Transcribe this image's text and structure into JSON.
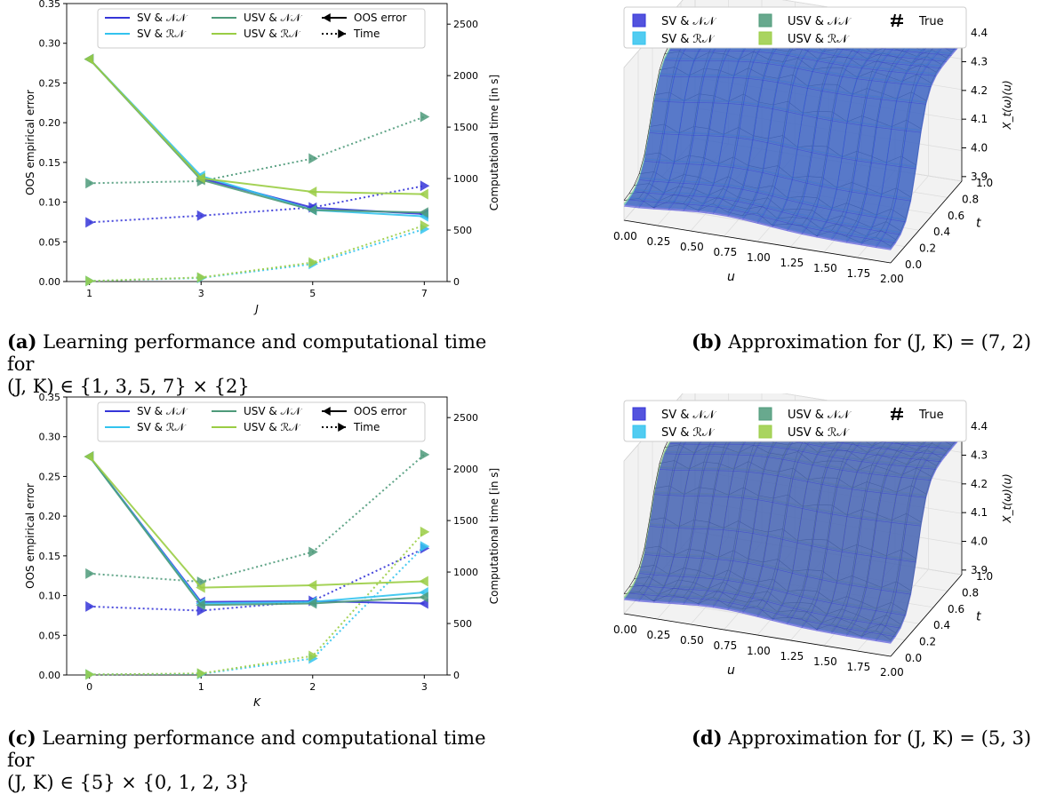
{
  "colors": {
    "sv_nn": "#3535d8",
    "sv_rn": "#33c3ee",
    "usv_nn": "#4e9a7a",
    "usv_rn": "#9acd44",
    "true": "#222222"
  },
  "legend_line": {
    "sv_nn": "SV & 𝒩𝒩",
    "sv_rn": "SV & ℛ𝒩",
    "usv_nn": "USV & 𝒩𝒩",
    "usv_rn": "USV & ℛ𝒩",
    "oos": "OOS error",
    "time": "Time"
  },
  "legend_surface": {
    "sv_nn": "SV & 𝒩𝒩",
    "sv_rn": "SV & ℛ𝒩",
    "usv_nn": "USV & 𝒩𝒩",
    "usv_rn": "USV & ℛ𝒩",
    "true": "True"
  },
  "captions": {
    "a": {
      "tag": "(a)",
      "line1": "Learning performance and computational time for",
      "line2": "(J, K) ∈ {1, 3, 5, 7} × {2}"
    },
    "b": {
      "tag": "(b)",
      "line1": "Approximation for (J, K) = (7, 2)"
    },
    "c": {
      "tag": "(c)",
      "line1": "Learning performance and computational time for",
      "line2": "(J, K) ∈ {5} × {0, 1, 2, 3}"
    },
    "d": {
      "tag": "(d)",
      "line1": "Approximation for (J, K) = (5, 3)"
    }
  },
  "chart_data": [
    {
      "id": "a",
      "type": "line",
      "xlabel": "J",
      "ylabel": "OOS empirical error",
      "y2label": "Computational time [in s]",
      "x": [
        1,
        3,
        5,
        7
      ],
      "ylim": [
        0,
        0.35
      ],
      "y2lim": [
        0,
        2700
      ],
      "yticks": [
        "0.00",
        "0.05",
        "0.10",
        "0.15",
        "0.20",
        "0.25",
        "0.30",
        "0.35"
      ],
      "y2ticks": [
        "0",
        "500",
        "1000",
        "1500",
        "2000",
        "2500"
      ],
      "series": [
        {
          "name": "SV & 𝒩𝒩",
          "key": "sv_nn",
          "error": [
            0.28,
            0.13,
            0.093,
            0.085
          ],
          "time": [
            575,
            640,
            720,
            930
          ]
        },
        {
          "name": "SV & ℛ𝒩",
          "key": "sv_rn",
          "error": [
            0.28,
            0.133,
            0.09,
            0.082
          ],
          "time": [
            5,
            35,
            170,
            510
          ]
        },
        {
          "name": "USV & 𝒩𝒩",
          "key": "usv_nn",
          "error": [
            0.28,
            0.128,
            0.09,
            0.087
          ],
          "time": [
            955,
            975,
            1195,
            1600
          ]
        },
        {
          "name": "USV & ℛ𝒩",
          "key": "usv_rn",
          "error": [
            0.28,
            0.13,
            0.113,
            0.11
          ],
          "time": [
            5,
            40,
            185,
            545
          ]
        }
      ]
    },
    {
      "id": "c",
      "type": "line",
      "xlabel": "K",
      "ylabel": "OOS empirical error",
      "y2label": "Computational time [in s]",
      "x": [
        0,
        1,
        2,
        3
      ],
      "ylim": [
        0,
        0.35
      ],
      "y2lim": [
        0,
        2700
      ],
      "yticks": [
        "0.00",
        "0.05",
        "0.10",
        "0.15",
        "0.20",
        "0.25",
        "0.30",
        "0.35"
      ],
      "y2ticks": [
        "0",
        "500",
        "1000",
        "1500",
        "2000",
        "2500"
      ],
      "series": [
        {
          "name": "SV & 𝒩𝒩",
          "key": "sv_nn",
          "error": [
            0.275,
            0.092,
            0.093,
            0.09
          ],
          "time": [
            665,
            625,
            720,
            1230
          ]
        },
        {
          "name": "SV & ℛ𝒩",
          "key": "sv_rn",
          "error": [
            0.275,
            0.09,
            0.092,
            0.104
          ],
          "time": [
            5,
            10,
            160,
            1250
          ]
        },
        {
          "name": "USV & 𝒩𝒩",
          "key": "usv_nn",
          "error": [
            0.275,
            0.088,
            0.09,
            0.098
          ],
          "time": [
            985,
            905,
            1195,
            2140
          ]
        },
        {
          "name": "USV & ℛ𝒩",
          "key": "usv_rn",
          "error": [
            0.275,
            0.11,
            0.113,
            0.118
          ],
          "time": [
            5,
            15,
            185,
            1390
          ]
        }
      ]
    },
    {
      "id": "b",
      "type": "surface",
      "xlabel": "u",
      "ylabel": "t",
      "zlabel": "X_t(ω)(u)",
      "xticks": [
        "0.00",
        "0.25",
        "0.50",
        "0.75",
        "1.00",
        "1.25",
        "1.50",
        "1.75",
        "2.00"
      ],
      "yticks": [
        "0.0",
        "0.2",
        "0.4",
        "0.6",
        "0.8",
        "1.0"
      ],
      "zticks": [
        "3.9",
        "4.0",
        "4.1",
        "4.2",
        "4.3",
        "4.4"
      ]
    },
    {
      "id": "d",
      "type": "surface",
      "xlabel": "u",
      "ylabel": "t",
      "zlabel": "X_t(ω)(u)",
      "xticks": [
        "0.00",
        "0.25",
        "0.50",
        "0.75",
        "1.00",
        "1.25",
        "1.50",
        "1.75",
        "2.00"
      ],
      "yticks": [
        "0.0",
        "0.2",
        "0.4",
        "0.6",
        "0.8",
        "1.0"
      ],
      "zticks": [
        "3.9",
        "4.0",
        "4.1",
        "4.2",
        "4.3",
        "4.4"
      ]
    }
  ]
}
